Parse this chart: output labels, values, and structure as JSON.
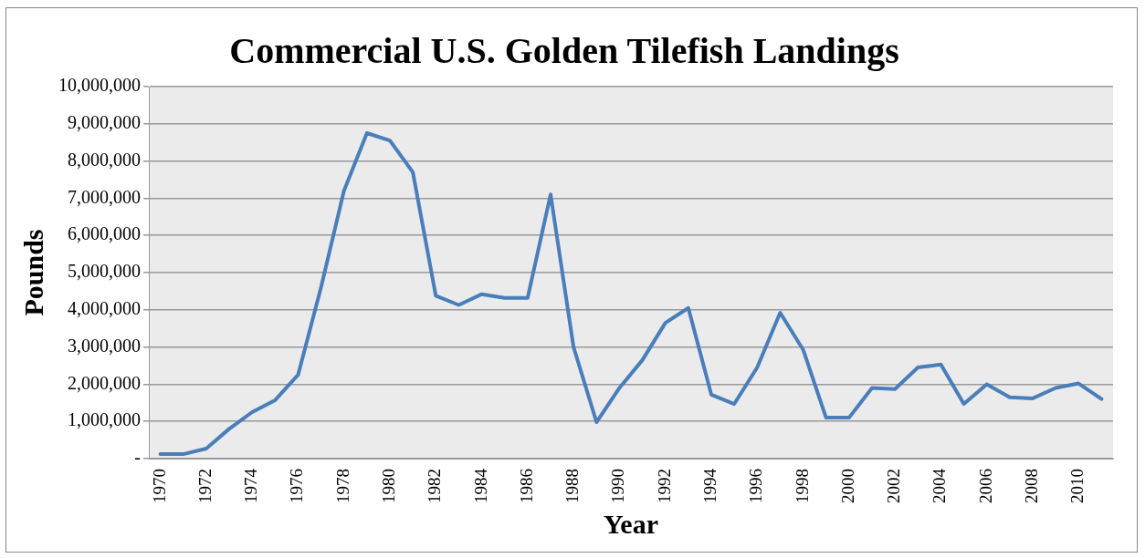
{
  "chart_data": {
    "type": "line",
    "title": "Commercial U.S. Golden Tilefish Landings",
    "xlabel": "Year",
    "ylabel": "Pounds",
    "categories": [
      "1970",
      null,
      "1972",
      null,
      "1974",
      null,
      "1976",
      null,
      "1978",
      null,
      "1980",
      null,
      "1982",
      null,
      "1984",
      null,
      "1986",
      null,
      "1988",
      null,
      "1990",
      null,
      "1992",
      null,
      "1994",
      null,
      "1996",
      null,
      "1998",
      null,
      "2000",
      null,
      "2002",
      null,
      "2004",
      null,
      "2006",
      null,
      "2008",
      null,
      "2010",
      null
    ],
    "series": [
      {
        "color": "#4a7ebb",
        "values": [
          120000,
          120000,
          270000,
          800000,
          1250000,
          1570000,
          2250000,
          4600000,
          7200000,
          8750000,
          8550000,
          7700000,
          4380000,
          4130000,
          4420000,
          4320000,
          4320000,
          7100000,
          3000000,
          980000,
          1900000,
          2650000,
          3650000,
          4050000,
          1720000,
          1470000,
          2450000,
          3920000,
          2930000,
          1100000,
          1100000,
          1900000,
          1870000,
          2450000,
          2530000,
          1470000,
          2000000,
          1650000,
          1620000,
          1900000,
          2020000,
          1600000
        ]
      }
    ],
    "ylim": [
      0,
      10000000
    ],
    "yticks": [
      {
        "value": 0,
        "label": "-"
      },
      {
        "value": 1000000,
        "label": "1,000,000"
      },
      {
        "value": 2000000,
        "label": "2,000,000"
      },
      {
        "value": 3000000,
        "label": "3,000,000"
      },
      {
        "value": 4000000,
        "label": "4,000,000"
      },
      {
        "value": 5000000,
        "label": "5,000,000"
      },
      {
        "value": 6000000,
        "label": "6,000,000"
      },
      {
        "value": 7000000,
        "label": "7,000,000"
      },
      {
        "value": 8000000,
        "label": "8,000,000"
      },
      {
        "value": 9000000,
        "label": "9,000,000"
      },
      {
        "value": 10000000,
        "label": "10,000,000"
      }
    ],
    "grid": "y",
    "legend": false,
    "marker": "none",
    "line_style": "solid"
  }
}
